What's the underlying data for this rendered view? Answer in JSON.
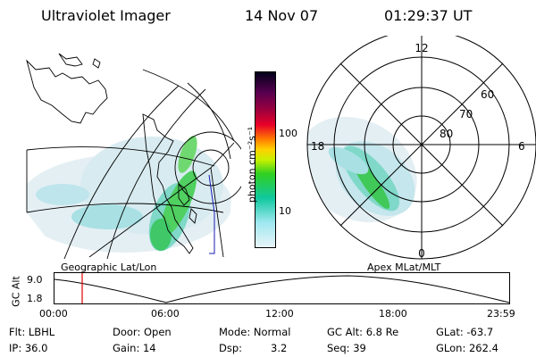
{
  "header": {
    "instrument": "Ultraviolet Imager",
    "date": "14 Nov 07",
    "time": "01:29:37 UT"
  },
  "colorbar": {
    "unit_label": "photon cm⁻²s⁻¹",
    "ticks": [
      "100",
      "10"
    ],
    "colors": [
      "#00001a",
      "#5a0050",
      "#a0003c",
      "#e8002a",
      "#ff7800",
      "#ffd000",
      "#c8f000",
      "#30d020",
      "#10c8a0",
      "#a0e8f0",
      "#e8f4f8"
    ]
  },
  "geo_panel": {
    "caption": "Geographic Lat/Lon"
  },
  "polar_panel": {
    "caption": "Apex MLat/MLT",
    "mlt_labels": [
      "12",
      "18",
      "6",
      "0"
    ],
    "mlat_labels": [
      "60",
      "70",
      "80"
    ]
  },
  "timeline": {
    "axis_label": "GC Alt",
    "y_ticks": [
      "9.0",
      "1.8"
    ],
    "x_ticks": [
      "00:00",
      "06:00",
      "12:00",
      "18:00",
      "23:59"
    ],
    "marker_color": "#e00000",
    "marker_time": "01:29:37"
  },
  "status": {
    "flt": "Flt: LBHL",
    "ip": "IP: 36.0",
    "door": "Door: Open",
    "gain": "Gain: 14",
    "mode": "Mode: Normal",
    "dsp_label": "Dsp:",
    "dsp_value": "3.2",
    "gc_alt": "GC Alt: 6.8 Re",
    "seq": "Seq: 39",
    "glat": "GLat: -63.7",
    "glon": "GLon: 262.4"
  }
}
